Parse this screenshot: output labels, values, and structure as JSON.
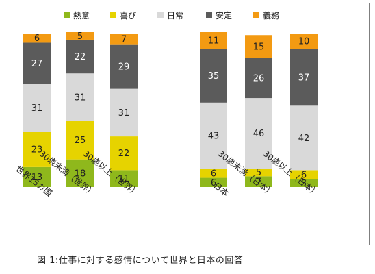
{
  "chart_data": {
    "type": "bar",
    "stacked": true,
    "legend_position": "top",
    "grid": false,
    "ylim": [
      0,
      100
    ],
    "categories": [
      "世界15カ国",
      "30歳未満（世界）",
      "30歳以上（世界）",
      "日本",
      "30歳未満（日本）",
      "30歳以上（日本）"
    ],
    "series": [
      {
        "name": "熱意",
        "color": "#8fb81c",
        "values": [
          13,
          18,
          11,
          6,
          7,
          5
        ]
      },
      {
        "name": "喜び",
        "color": "#e6d300",
        "values": [
          23,
          25,
          22,
          6,
          5,
          6
        ]
      },
      {
        "name": "日常",
        "color": "#d9d9d9",
        "values": [
          31,
          31,
          31,
          43,
          46,
          42
        ]
      },
      {
        "name": "安定",
        "color": "#5b5b5b",
        "values": [
          27,
          22,
          29,
          35,
          26,
          37
        ]
      },
      {
        "name": "義務",
        "color": "#f39a12",
        "values": [
          6,
          5,
          7,
          11,
          15,
          10
        ]
      }
    ]
  },
  "caption": "図 1:仕事に対する感情について世界と日本の回答"
}
